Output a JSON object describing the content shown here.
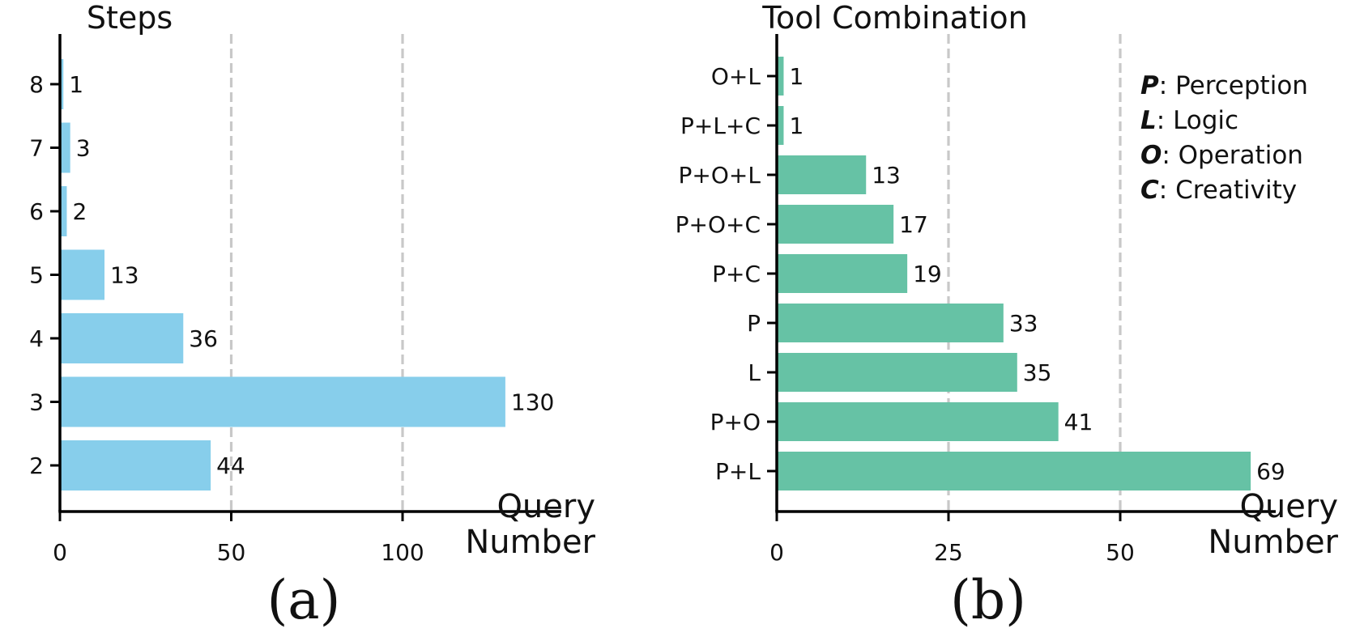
{
  "chart_data": [
    {
      "type": "bar",
      "orientation": "horizontal",
      "title": "Steps",
      "xlabel": "Query\nNumber",
      "ylabel": "",
      "categories": [
        "2",
        "3",
        "4",
        "5",
        "6",
        "7",
        "8"
      ],
      "values": [
        44,
        130,
        36,
        13,
        2,
        3,
        1
      ],
      "xlim": [
        0,
        137
      ],
      "xticks": [
        0,
        50,
        100
      ],
      "gridlines": [
        50,
        100
      ],
      "grid": "vertical dashed",
      "color": "#87ceeb",
      "panel_label": "(a)"
    },
    {
      "type": "bar",
      "orientation": "horizontal",
      "title": "Tool Combination",
      "xlabel": "Query\nNumber",
      "ylabel": "",
      "categories": [
        "P+L",
        "P+O",
        "L",
        "P",
        "P+C",
        "P+O+C",
        "P+O+L",
        "P+L+C",
        "O+L"
      ],
      "values": [
        69,
        41,
        35,
        33,
        19,
        17,
        13,
        1,
        1
      ],
      "xlim": [
        0,
        72.5
      ],
      "xticks": [
        0,
        25,
        50
      ],
      "gridlines": [
        25,
        50
      ],
      "grid": "vertical dashed",
      "color": "#66c2a5",
      "panel_label": "(b)",
      "legend": {
        "placement": "top-right",
        "entries": [
          {
            "key": "P",
            "text": ":  Perception"
          },
          {
            "key": "L",
            "text": ":  Logic"
          },
          {
            "key": "O",
            "text": ": Operation"
          },
          {
            "key": "C",
            "text": ":  Creativity"
          }
        ]
      }
    }
  ]
}
